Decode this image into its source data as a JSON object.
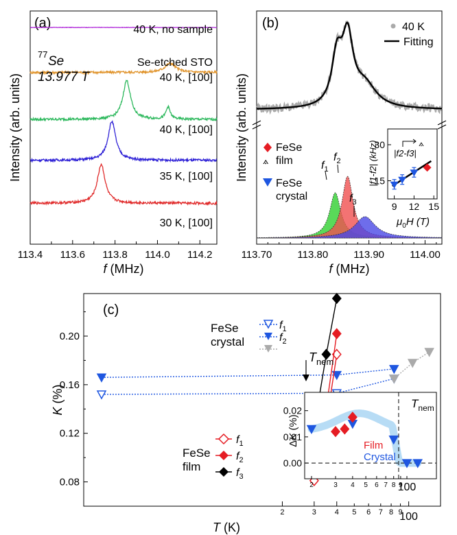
{
  "colors": {
    "nosample": "#b02ad9",
    "etched": "#e0932a",
    "k40": "#2cb85c",
    "k35": "#2f22d6",
    "k30": "#e02a2a",
    "gray": "#aaaaaa",
    "film": "#e51c23",
    "crystal": "#1e56e0",
    "f1fill": "#2fcf2f",
    "f2fill": "#f05050",
    "f3fill": "#4a48e6",
    "band": "#b7dcf5"
  },
  "chart_data": [
    {
      "panel": "(a)",
      "type": "line",
      "xlabel_italic": "f",
      "xlabel_rest": " (MHz)",
      "ylabel": "Intensity (arb. units)",
      "xlim": [
        113.4,
        114.28
      ],
      "xticks": [
        "113.4",
        "113.6",
        "113.8",
        "114.0",
        "114.2"
      ],
      "isotope_sup": "77",
      "isotope": "Se",
      "field": "13.977 T",
      "series": [
        {
          "label": "40 K, no sample",
          "color_key": "nosample",
          "baseline": 1.0,
          "peaks": []
        },
        {
          "label": "Se-etched STO",
          "color_key": "etched",
          "baseline": 0.78,
          "peaks": []
        },
        {
          "label": "40 K, [100]",
          "color_key": "etched",
          "baseline": 0.78,
          "peaks": [
            {
              "x": 114.06,
              "h": 0.045,
              "w": 0.03
            }
          ]
        },
        {
          "label": "40 K, [100]",
          "color_key": "k40",
          "baseline": 0.55,
          "peaks": [
            {
              "x": 113.855,
              "h": 0.19,
              "w": 0.022
            },
            {
              "x": 114.05,
              "h": 0.06,
              "w": 0.012
            }
          ]
        },
        {
          "label": "35 K, [100]",
          "color_key": "k35",
          "baseline": 0.35,
          "peaks": [
            {
              "x": 113.785,
              "h": 0.19,
              "w": 0.022
            }
          ]
        },
        {
          "label": "30 K, [100]",
          "color_key": "k30",
          "baseline": 0.14,
          "peaks": [
            {
              "x": 113.735,
              "h": 0.19,
              "w": 0.022
            }
          ]
        }
      ]
    },
    {
      "panel": "(b)",
      "type": "line",
      "xlabel_italic": "f",
      "xlabel_rest": " (MHz)",
      "ylabel": "Intensity (arb. units)",
      "xlim": [
        113.7,
        114.03
      ],
      "xticks": [
        "113.70",
        "113.80",
        "113.90",
        "114.00"
      ],
      "legend_top": [
        "40 K",
        "Fitting"
      ],
      "legend_bottom": [
        "FeSe",
        "film",
        "FeSe",
        "crystal"
      ],
      "peak_labels": [
        "f",
        "1",
        "f",
        "2",
        "f",
        "3"
      ],
      "peaks": [
        {
          "name": "f1",
          "x": 113.84,
          "h": 0.55,
          "w": 0.012,
          "fill_key": "f1fill"
        },
        {
          "name": "f2",
          "x": 113.862,
          "h": 0.75,
          "w": 0.012,
          "fill_key": "f2fill"
        },
        {
          "name": "f3",
          "x": 113.893,
          "h": 0.26,
          "w": 0.022,
          "fill_key": "f3fill"
        }
      ],
      "inset": {
        "type": "scatter",
        "ylabel": "|f1-f2| (kHz)",
        "label2": "|f2-f3|",
        "xlabel_sym": "μ",
        "xlabel_sub": "0",
        "xlabel_rest": "H (T)",
        "xticks": [
          "9",
          "12",
          "15"
        ],
        "yticks": [
          "15",
          "30"
        ],
        "xlim": [
          8,
          15.5
        ],
        "ylim": [
          8,
          36
        ],
        "crystal": [
          {
            "x": 9.0,
            "y": 13.5,
            "err": 2.0
          },
          {
            "x": 10.2,
            "y": 15.5,
            "err": 2.0
          },
          {
            "x": 12.0,
            "y": 18.5,
            "err": 2.0
          }
        ],
        "film": [
          {
            "x": 14.0,
            "y": 20.5
          }
        ],
        "fit": [
          [
            8.7,
            12.8
          ],
          [
            14.6,
            23.2
          ]
        ]
      }
    },
    {
      "panel": "(c)",
      "type": "scatter",
      "xlabel_italic": "T",
      "xlabel_rest": " (K)",
      "ylabel_italic": "K",
      "ylabel_rest": " (%)",
      "xscale": "log",
      "xlim": [
        2,
        150
      ],
      "ylim": [
        0.06,
        0.235
      ],
      "xticks": [
        "2",
        "3",
        "4",
        "5",
        "6",
        "7",
        "8",
        "9",
        "100"
      ],
      "yticks": [
        "0.08",
        "0.12",
        "0.16",
        "0.20"
      ],
      "tnem_label": "T",
      "tnem_sub": "nem",
      "legend_crystal": [
        "FeSe",
        "crystal",
        "f",
        "1",
        "f",
        "2"
      ],
      "legend_film": [
        "FeSe",
        "film",
        "f",
        "1",
        "f",
        "2",
        "f",
        "3"
      ],
      "series": [
        {
          "name": "crystal f1",
          "style": "open-down",
          "color_key": "crystal",
          "dotted": true,
          "points": [
            [
              2,
              0.152
            ],
            [
              40,
              0.153
            ],
            [
              83,
              0.165
            ]
          ]
        },
        {
          "name": "crystal f2",
          "style": "filled-down",
          "color_key": "crystal",
          "dotted": true,
          "points": [
            [
              2,
              0.166
            ],
            [
              40,
              0.168
            ],
            [
              83,
              0.173
            ]
          ]
        },
        {
          "name": "crystal gray",
          "style": "filled-down",
          "color_key": "gray",
          "dotted": true,
          "points": [
            [
              83,
              0.165
            ],
            [
              105,
              0.178
            ],
            [
              130,
              0.187
            ]
          ]
        },
        {
          "name": "film f1",
          "style": "open-diamond",
          "color_key": "film",
          "dotted": false,
          "points": [
            [
              30,
              0.081
            ],
            [
              35,
              0.128
            ],
            [
              40,
              0.185
            ]
          ]
        },
        {
          "name": "film f2",
          "style": "filled-diamond",
          "color_key": "film",
          "dotted": false,
          "points": [
            [
              30,
              0.094
            ],
            [
              35,
              0.141
            ],
            [
              40,
              0.202
            ]
          ]
        },
        {
          "name": "film f3",
          "style": "filled-diamond",
          "color_key": "black",
          "dotted": false,
          "points": [
            [
              30,
              0.125
            ],
            [
              35,
              0.185
            ],
            [
              40,
              0.231
            ]
          ]
        }
      ],
      "inset": {
        "type": "scatter",
        "xscale": "log",
        "ylabel_sym": "Δ",
        "ylabel_italic": "K",
        "ylabel_rest": " (%)",
        "xticks": [
          "2",
          "3",
          "4",
          "5",
          "6",
          "7",
          "8",
          "9",
          "100"
        ],
        "yticks": [
          "0.00",
          "0.01",
          "0.02"
        ],
        "ylim": [
          -0.006,
          0.027
        ],
        "tnem_label": "T",
        "tnem_sub": "nem",
        "tnem_x": 87,
        "legend": [
          "Film",
          "Crystal"
        ],
        "crystal": [
          [
            20,
            0.013
          ],
          [
            40,
            0.015
          ],
          [
            80,
            0.009
          ],
          [
            100,
            0.0
          ],
          [
            120,
            0.0
          ]
        ],
        "film": [
          [
            30,
            0.012
          ],
          [
            35,
            0.013
          ],
          [
            40,
            0.0175
          ]
        ]
      }
    }
  ]
}
